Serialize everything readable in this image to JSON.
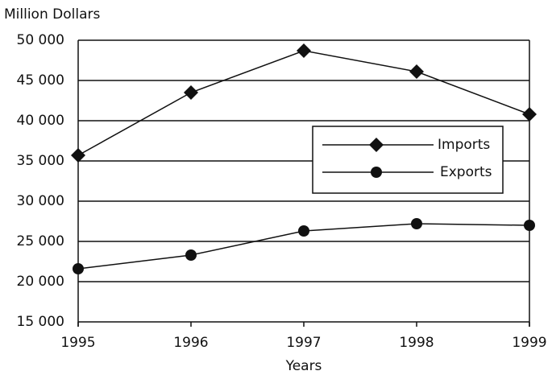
{
  "chart_data": {
    "type": "line",
    "y_label": "Million Dollars",
    "x_label": "Years",
    "categories": [
      "1995",
      "1996",
      "1997",
      "1998",
      "1999"
    ],
    "series": [
      {
        "name": "Imports",
        "color": "#111111",
        "marker": "diamond",
        "values": [
          35700,
          43500,
          48700,
          46100,
          40800
        ]
      },
      {
        "name": "Exports",
        "color": "#111111",
        "marker": "circle",
        "values": [
          21600,
          23300,
          26300,
          27200,
          27000
        ]
      }
    ],
    "ylim": [
      15000,
      50000
    ],
    "yticks": [
      {
        "value": 15000,
        "label": "15 000"
      },
      {
        "value": 20000,
        "label": "20 000"
      },
      {
        "value": 25000,
        "label": "25 000"
      },
      {
        "value": 30000,
        "label": "30 000"
      },
      {
        "value": 35000,
        "label": "35 000"
      },
      {
        "value": 40000,
        "label": "40 000"
      },
      {
        "value": 45000,
        "label": "45 000"
      },
      {
        "value": 50000,
        "label": "50 000"
      }
    ],
    "grid": true
  }
}
